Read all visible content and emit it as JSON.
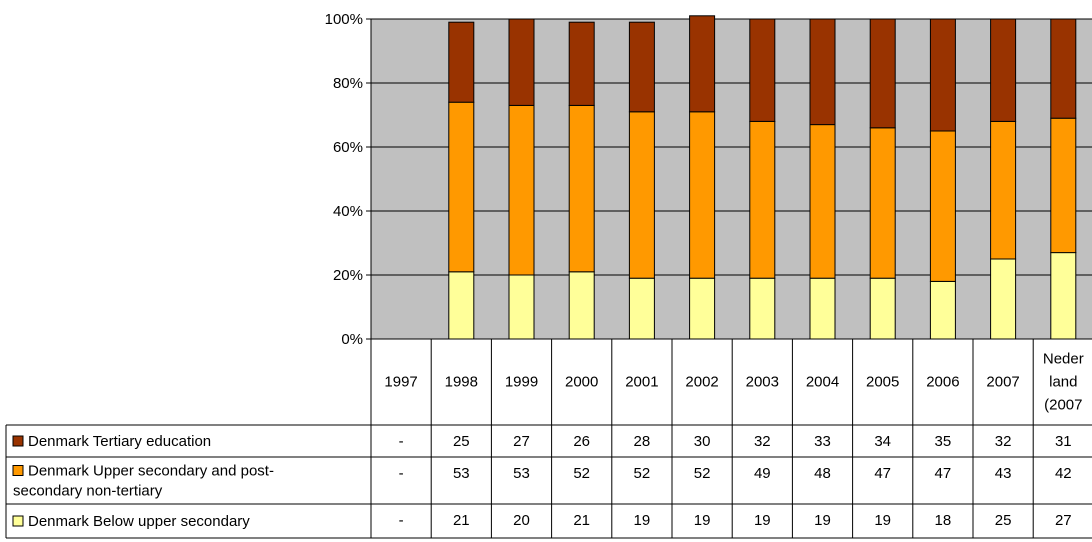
{
  "chart_data": {
    "type": "bar",
    "stacked": true,
    "percent": true,
    "categories": [
      "1997",
      "1998",
      "1999",
      "2000",
      "2001",
      "2002",
      "2003",
      "2004",
      "2005",
      "2006",
      "2007",
      "Nederland (2007"
    ],
    "category_lines": [
      [
        "1997"
      ],
      [
        "1998"
      ],
      [
        "1999"
      ],
      [
        "2000"
      ],
      [
        "2001"
      ],
      [
        "2002"
      ],
      [
        "2003"
      ],
      [
        "2004"
      ],
      [
        "2005"
      ],
      [
        "2006"
      ],
      [
        "2007"
      ],
      [
        "Neder",
        "land",
        "(2007"
      ]
    ],
    "series": [
      {
        "name": "Denmark Tertiary education",
        "name_lines": [
          "Denmark Tertiary education"
        ],
        "color": "#993300",
        "values": [
          null,
          25,
          27,
          26,
          28,
          30,
          32,
          33,
          34,
          35,
          32,
          31
        ],
        "table_values": [
          "-",
          "25",
          "27",
          "26",
          "28",
          "30",
          "32",
          "33",
          "34",
          "35",
          "32",
          "31"
        ]
      },
      {
        "name": "Denmark Upper secondary and post-secondary non-tertiary",
        "name_lines": [
          "Denmark Upper secondary and post-",
          "secondary non-tertiary"
        ],
        "color": "#FF9900",
        "values": [
          null,
          53,
          53,
          52,
          52,
          52,
          49,
          48,
          47,
          47,
          43,
          42
        ],
        "table_values": [
          "-",
          "53",
          "53",
          "52",
          "52",
          "52",
          "49",
          "48",
          "47",
          "47",
          "43",
          "42"
        ]
      },
      {
        "name": "Denmark Below upper secondary",
        "name_lines": [
          "Denmark Below upper secondary"
        ],
        "color": "#FFFF99",
        "values": [
          null,
          21,
          20,
          21,
          19,
          19,
          19,
          19,
          19,
          18,
          25,
          27
        ],
        "table_values": [
          "-",
          "21",
          "20",
          "21",
          "19",
          "19",
          "19",
          "19",
          "19",
          "18",
          "25",
          "27"
        ]
      }
    ],
    "yticks": [
      "0%",
      "20%",
      "40%",
      "60%",
      "80%",
      "100%"
    ],
    "ylim": [
      0,
      100
    ],
    "grid": true,
    "plot_background": "#C0C0C0",
    "legend": "data-table-left"
  }
}
